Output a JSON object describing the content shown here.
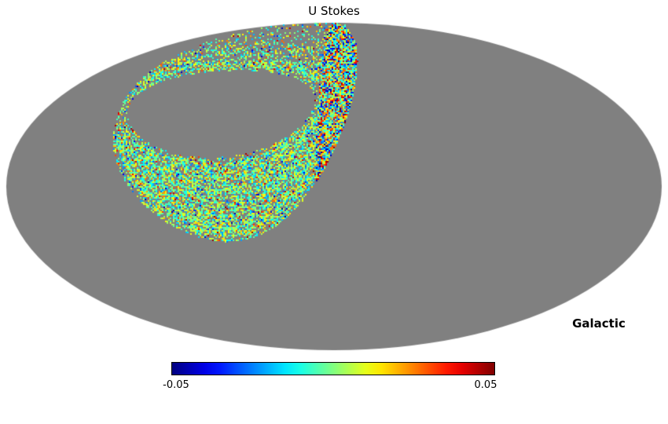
{
  "chart_data": {
    "type": "heatmap",
    "projection": "mollweide",
    "title": "U Stokes",
    "coordinate_system": "Galactic",
    "colormap": "jet",
    "colorbar": {
      "min": -0.05,
      "max": 0.05,
      "min_label": "-0.05",
      "max_label": "0.05",
      "orientation": "horizontal"
    },
    "colors": {
      "missing_data": "#808080",
      "page_background": "#ffffff",
      "text": "#000000"
    },
    "coverage_region": {
      "description": "Speckled scan-ring annulus of U Stokes polarization values (jet colormap, mostly near 0 / green with scattered blue and red outliers); remainder of sky unobserved and shown gray.",
      "ring_axis": {
        "lon_deg": 62,
        "lat_deg": 33
      },
      "outer_radius_deg": 58,
      "hole": {
        "center_dx_deg": 7,
        "center_dy_deg": 1,
        "semi_axis_lon_deg": 47,
        "semi_axis_lat_deg": 21
      },
      "dense_patch_lon_range_deg": [
        -25,
        10
      ],
      "value_sigma": 0.012,
      "dense_patch_value_sigma": 0.02
    }
  }
}
